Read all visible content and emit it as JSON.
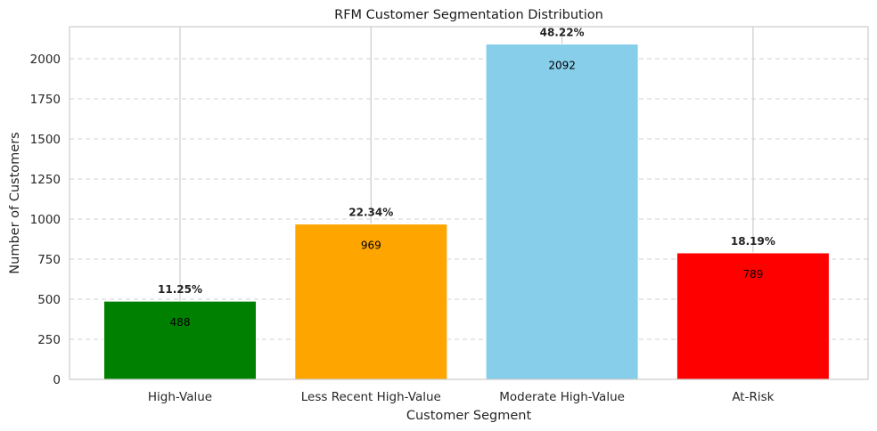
{
  "chart_data": {
    "type": "bar",
    "title": "RFM Customer Segmentation Distribution",
    "xlabel": "Customer Segment",
    "ylabel": "Number of Customers",
    "categories": [
      "High-Value",
      "Less Recent High-Value",
      "Moderate High-Value",
      "At-Risk"
    ],
    "values": [
      488,
      969,
      2092,
      789
    ],
    "value_labels": [
      "488",
      "969",
      "2092",
      "789"
    ],
    "percent_labels": [
      "11.25%",
      "22.34%",
      "48.22%",
      "18.19%"
    ],
    "colors": [
      "#008000",
      "#FFA500",
      "#87CEEB",
      "#FF0000"
    ],
    "ylim": [
      0,
      2200
    ],
    "yticks": [
      0,
      250,
      500,
      750,
      1000,
      1250,
      1500,
      1750,
      2000
    ],
    "grid": {
      "y": "dashed",
      "x": "solid"
    }
  }
}
